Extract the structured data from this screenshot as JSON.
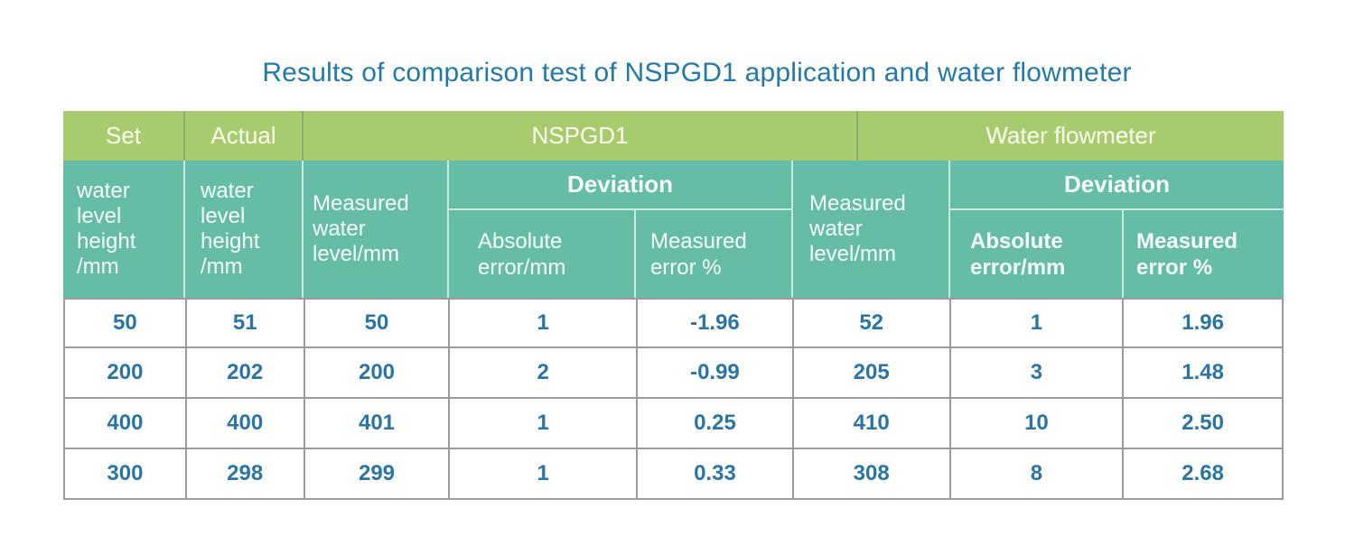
{
  "title": "Results of comparison test of NSPGD1 application and water flowmeter",
  "colors": {
    "header_green": "#a8cb6e",
    "header_teal": "#65bda7",
    "header_text": "#f6fcf8",
    "title_text": "#2279aa",
    "data_text": "#2a75a6",
    "grid_border": "#9b9b9b"
  },
  "header": {
    "top": {
      "set": "Set",
      "actual": "Actual",
      "nspgd1": "NSPGD1",
      "flowmeter": "Water flowmeter"
    },
    "sub": {
      "set_unit": "water\nlevel\nheight\n/mm",
      "actual_unit": "water\nlevel\nheight\n/mm",
      "nspgd1_measured": "Measured\nwater\nlevel/mm",
      "nspgd1_deviation": "Deviation",
      "nspgd1_abs_error": "Absolute\nerror/mm",
      "nspgd1_meas_error": "Measured\nerror %",
      "flow_measured": "Measured\nwater\nlevel/mm",
      "flow_deviation": "Deviation",
      "flow_abs_error": "Absolute\nerror/mm",
      "flow_meas_error": "Measured\nerror %"
    }
  },
  "chart_data": {
    "type": "table",
    "title": "Results of comparison test of NSPGD1 application and water flowmeter",
    "column_groups": [
      "Set",
      "Actual",
      "NSPGD1",
      "Water flowmeter"
    ],
    "columns": [
      "Set water level height /mm",
      "Actual water level height /mm",
      "NSPGD1 Measured water level/mm",
      "NSPGD1 Deviation Absolute error/mm",
      "NSPGD1 Deviation Measured error %",
      "Water flowmeter Measured water level/mm",
      "Water flowmeter Deviation Absolute error/mm",
      "Water flowmeter Deviation Measured error %"
    ],
    "rows": [
      [
        "50",
        "51",
        "50",
        "1",
        "-1.96",
        "52",
        "1",
        "1.96"
      ],
      [
        "200",
        "202",
        "200",
        "2",
        "-0.99",
        "205",
        "3",
        "1.48"
      ],
      [
        "400",
        "400",
        "401",
        "1",
        "0.25",
        "410",
        "10",
        "2.50"
      ],
      [
        "300",
        "298",
        "299",
        "1",
        "0.33",
        "308",
        "8",
        "2.68"
      ]
    ]
  }
}
